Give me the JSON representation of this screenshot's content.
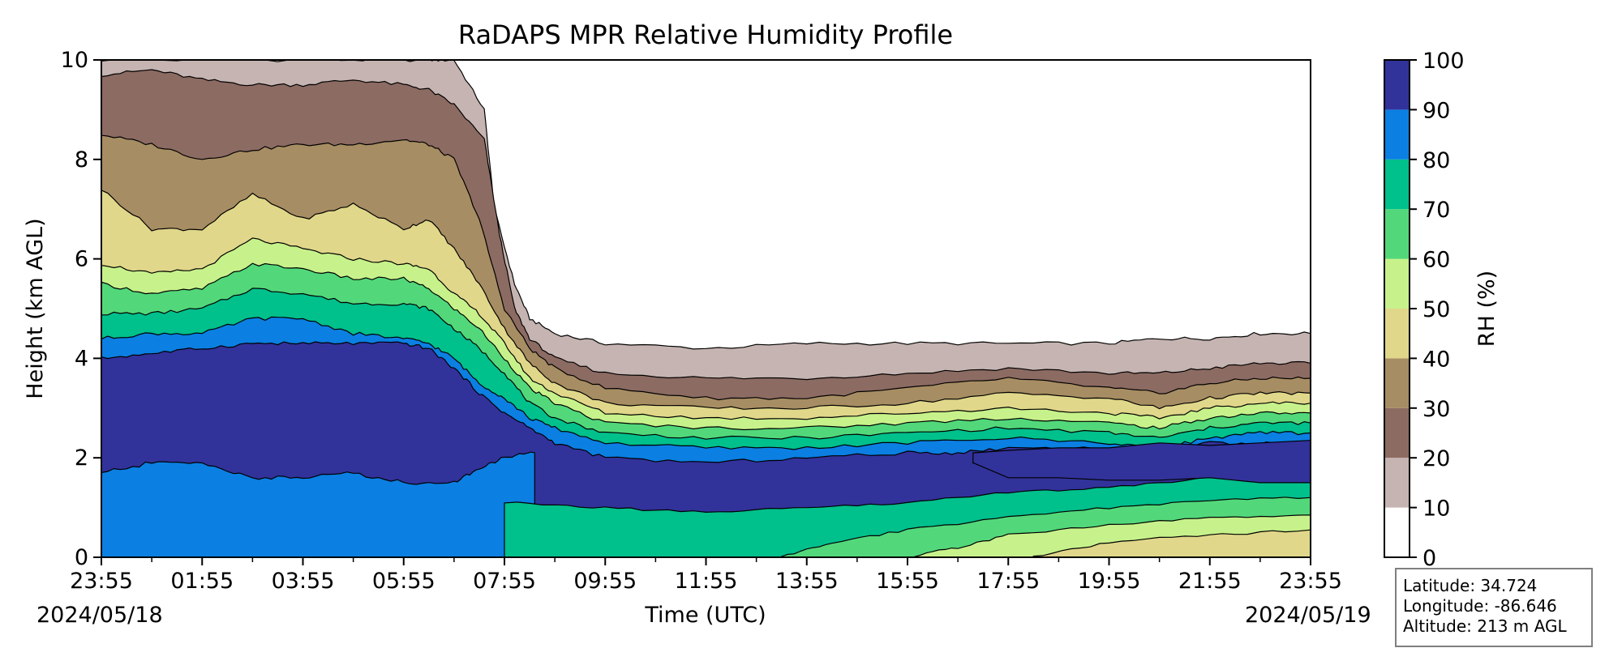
{
  "chart_data": {
    "type": "heatmap",
    "subtype": "filled-contour time-height cross section",
    "title": "RaDAPS MPR Relative Humidity Profile",
    "xlabel": "Time (UTC)",
    "ylabel": "Height (km AGL)",
    "x_tick_labels": [
      "23:55",
      "01:55",
      "03:55",
      "05:55",
      "07:55",
      "09:55",
      "11:55",
      "13:55",
      "15:55",
      "17:55",
      "19:55",
      "21:55",
      "23:55"
    ],
    "x_range_hours_utc": [
      0,
      24
    ],
    "start_date": "2024/05/18",
    "end_date": "2024/05/19",
    "ylim": [
      0,
      10
    ],
    "y_ticks": [
      0,
      2,
      4,
      6,
      8,
      10
    ],
    "colorbar": {
      "label": "RH (%)",
      "ticks": [
        0,
        10,
        20,
        30,
        40,
        50,
        60,
        70,
        80,
        90,
        100
      ],
      "levels": [
        {
          "range": [
            0,
            10
          ],
          "color": "#ffffff"
        },
        {
          "range": [
            10,
            20
          ],
          "color": "#c5b4b1"
        },
        {
          "range": [
            20,
            30
          ],
          "color": "#8c6b63"
        },
        {
          "range": [
            30,
            40
          ],
          "color": "#a78d63"
        },
        {
          "range": [
            40,
            50
          ],
          "color": "#e0d78a"
        },
        {
          "range": [
            50,
            60
          ],
          "color": "#c7f28b"
        },
        {
          "range": [
            60,
            70
          ],
          "color": "#52d87a"
        },
        {
          "range": [
            70,
            80
          ],
          "color": "#00c08c"
        },
        {
          "range": [
            80,
            90
          ],
          "color": "#0b7fe2"
        },
        {
          "range": [
            90,
            100
          ],
          "color": "#32329b"
        }
      ]
    },
    "contour_layers": [
      {
        "rh_threshold": 10,
        "top_km": [
          [
            0,
            10
          ],
          [
            3,
            10
          ],
          [
            5,
            10
          ],
          [
            6.5,
            10
          ],
          [
            7,
            10
          ],
          [
            7.6,
            9
          ],
          [
            7.8,
            7
          ],
          [
            8.2,
            5.5
          ],
          [
            8.5,
            4.8
          ],
          [
            9,
            4.5
          ],
          [
            10,
            4.3
          ],
          [
            12,
            4.2
          ],
          [
            14,
            4.3
          ],
          [
            16,
            4.3
          ],
          [
            18,
            4.3
          ],
          [
            20,
            4.3
          ],
          [
            21,
            4.4
          ],
          [
            22,
            4.4
          ],
          [
            23,
            4.5
          ],
          [
            24,
            4.5
          ]
        ]
      },
      {
        "rh_threshold": 20,
        "top_km": [
          [
            0,
            9.7
          ],
          [
            1,
            9.8
          ],
          [
            2,
            9.6
          ],
          [
            3,
            9.5
          ],
          [
            4,
            9.5
          ],
          [
            5,
            9.6
          ],
          [
            6,
            9.5
          ],
          [
            6.5,
            9.4
          ],
          [
            7,
            9.1
          ],
          [
            7.6,
            8.4
          ],
          [
            7.9,
            6.5
          ],
          [
            8.2,
            5.0
          ],
          [
            8.5,
            4.4
          ],
          [
            9,
            4.0
          ],
          [
            10,
            3.7
          ],
          [
            12,
            3.6
          ],
          [
            14,
            3.6
          ],
          [
            16,
            3.7
          ],
          [
            18,
            3.8
          ],
          [
            20,
            3.7
          ],
          [
            21,
            3.7
          ],
          [
            22,
            3.8
          ],
          [
            23,
            3.9
          ],
          [
            24,
            3.9
          ]
        ]
      },
      {
        "rh_threshold": 30,
        "top_km": [
          [
            0,
            8.5
          ],
          [
            1,
            8.3
          ],
          [
            2,
            8.0
          ],
          [
            3,
            8.2
          ],
          [
            4,
            8.3
          ],
          [
            5,
            8.3
          ],
          [
            6,
            8.4
          ],
          [
            6.5,
            8.3
          ],
          [
            7,
            8.0
          ],
          [
            7.5,
            6.8
          ],
          [
            8,
            5.0
          ],
          [
            8.5,
            4.2
          ],
          [
            9,
            3.8
          ],
          [
            10,
            3.4
          ],
          [
            12,
            3.2
          ],
          [
            14,
            3.2
          ],
          [
            16,
            3.4
          ],
          [
            18,
            3.6
          ],
          [
            20,
            3.4
          ],
          [
            21,
            3.3
          ],
          [
            22,
            3.5
          ],
          [
            23,
            3.6
          ],
          [
            24,
            3.6
          ]
        ]
      },
      {
        "rh_threshold": 40,
        "top_km": [
          [
            0,
            7.4
          ],
          [
            1,
            6.6
          ],
          [
            2,
            6.6
          ],
          [
            3,
            7.3
          ],
          [
            4,
            6.8
          ],
          [
            5,
            7.1
          ],
          [
            6,
            6.6
          ],
          [
            6.5,
            6.8
          ],
          [
            7,
            6.2
          ],
          [
            7.5,
            5.5
          ],
          [
            8,
            4.6
          ],
          [
            8.5,
            3.9
          ],
          [
            9,
            3.5
          ],
          [
            10,
            3.1
          ],
          [
            12,
            3.0
          ],
          [
            14,
            3.0
          ],
          [
            16,
            3.1
          ],
          [
            18,
            3.3
          ],
          [
            20,
            3.2
          ],
          [
            21,
            3.0
          ],
          [
            22,
            3.2
          ],
          [
            23,
            3.3
          ],
          [
            24,
            3.3
          ]
        ]
      },
      {
        "rh_threshold": 50,
        "top_km": [
          [
            0,
            5.9
          ],
          [
            1,
            5.7
          ],
          [
            2,
            5.8
          ],
          [
            3,
            6.4
          ],
          [
            4,
            6.2
          ],
          [
            5,
            6.0
          ],
          [
            6,
            5.9
          ],
          [
            6.5,
            5.8
          ],
          [
            7,
            5.3
          ],
          [
            7.5,
            4.9
          ],
          [
            8,
            4.3
          ],
          [
            8.5,
            3.6
          ],
          [
            9,
            3.3
          ],
          [
            10,
            2.9
          ],
          [
            12,
            2.8
          ],
          [
            14,
            2.8
          ],
          [
            16,
            2.9
          ],
          [
            18,
            3.0
          ],
          [
            20,
            2.9
          ],
          [
            21,
            2.8
          ],
          [
            22,
            3.0
          ],
          [
            23,
            3.1
          ],
          [
            24,
            3.1
          ]
        ]
      },
      {
        "rh_threshold": 60,
        "top_km": [
          [
            0,
            5.5
          ],
          [
            1,
            5.3
          ],
          [
            2,
            5.4
          ],
          [
            3,
            5.9
          ],
          [
            4,
            5.8
          ],
          [
            5,
            5.6
          ],
          [
            6,
            5.6
          ],
          [
            6.5,
            5.4
          ],
          [
            7,
            5.0
          ],
          [
            7.5,
            4.6
          ],
          [
            8,
            4.0
          ],
          [
            8.5,
            3.4
          ],
          [
            9,
            3.1
          ],
          [
            10,
            2.7
          ],
          [
            12,
            2.6
          ],
          [
            14,
            2.6
          ],
          [
            16,
            2.7
          ],
          [
            18,
            2.8
          ],
          [
            20,
            2.7
          ],
          [
            21,
            2.6
          ],
          [
            22,
            2.8
          ],
          [
            23,
            2.9
          ],
          [
            24,
            2.9
          ]
        ]
      },
      {
        "rh_threshold": 70,
        "top_km": [
          [
            0,
            4.9
          ],
          [
            1,
            4.9
          ],
          [
            2,
            5.0
          ],
          [
            3,
            5.4
          ],
          [
            4,
            5.3
          ],
          [
            5,
            5.1
          ],
          [
            6,
            5.1
          ],
          [
            6.5,
            5.0
          ],
          [
            7,
            4.6
          ],
          [
            7.5,
            4.2
          ],
          [
            8,
            3.7
          ],
          [
            8.5,
            3.1
          ],
          [
            9,
            2.8
          ],
          [
            10,
            2.5
          ],
          [
            12,
            2.4
          ],
          [
            14,
            2.4
          ],
          [
            16,
            2.5
          ],
          [
            18,
            2.6
          ],
          [
            20,
            2.5
          ],
          [
            21,
            2.4
          ],
          [
            22,
            2.6
          ],
          [
            23,
            2.7
          ],
          [
            24,
            2.7
          ]
        ]
      },
      {
        "rh_threshold": 80,
        "top_km": [
          [
            0,
            4.4
          ],
          [
            1,
            4.5
          ],
          [
            2,
            4.5
          ],
          [
            3,
            4.8
          ],
          [
            4,
            4.8
          ],
          [
            5,
            4.5
          ],
          [
            6,
            4.4
          ],
          [
            6.5,
            4.3
          ],
          [
            7,
            4.0
          ],
          [
            7.5,
            3.5
          ],
          [
            8,
            3.2
          ],
          [
            8.5,
            2.8
          ],
          [
            9,
            2.6
          ],
          [
            10,
            2.3
          ],
          [
            12,
            2.2
          ],
          [
            14,
            2.2
          ],
          [
            16,
            2.3
          ],
          [
            18,
            2.4
          ],
          [
            20,
            2.3
          ],
          [
            21,
            2.2
          ],
          [
            22,
            2.4
          ],
          [
            23,
            2.5
          ],
          [
            24,
            2.5
          ]
        ]
      },
      {
        "rh_threshold": 90,
        "top_km": [
          [
            0,
            4.0
          ],
          [
            1,
            4.1
          ],
          [
            2,
            4.2
          ],
          [
            3,
            4.3
          ],
          [
            4,
            4.3
          ],
          [
            5,
            4.3
          ],
          [
            6,
            4.3
          ],
          [
            6.5,
            4.2
          ],
          [
            7,
            3.8
          ],
          [
            7.5,
            3.3
          ],
          [
            8,
            2.9
          ],
          [
            8.5,
            2.6
          ],
          [
            9,
            2.3
          ],
          [
            10,
            2.0
          ],
          [
            12,
            1.9
          ],
          [
            14,
            2.0
          ],
          [
            16,
            2.1
          ],
          [
            17,
            2.1
          ],
          [
            18,
            2.2
          ],
          [
            20,
            2.2
          ],
          [
            21,
            2.1
          ],
          [
            22,
            2.3
          ],
          [
            23,
            2.3
          ],
          [
            24,
            2.3
          ]
        ]
      }
    ],
    "features": {
      "rh_above_90_band_top_km": "0–4.3 km from 23:55 to ~07:55",
      "rh_above_90_lower_bound_km": [
        [
          0,
          1.7
        ],
        [
          1,
          1.9
        ],
        [
          2,
          1.9
        ],
        [
          3,
          1.6
        ],
        [
          4,
          1.6
        ],
        [
          5,
          1.7
        ],
        [
          6,
          1.5
        ],
        [
          7,
          1.5
        ],
        [
          7.5,
          1.8
        ],
        [
          8,
          2.0
        ],
        [
          8.6,
          2.1
        ]
      ],
      "rh_above_90_evening_layer_km": "1.5–2.3 km from ~17:30 to 23:55"
    }
  },
  "info": {
    "latitude": "Latitude: 34.724",
    "longitude": "Longitude: -86.646",
    "altitude": "Altitude: 213 m AGL"
  }
}
